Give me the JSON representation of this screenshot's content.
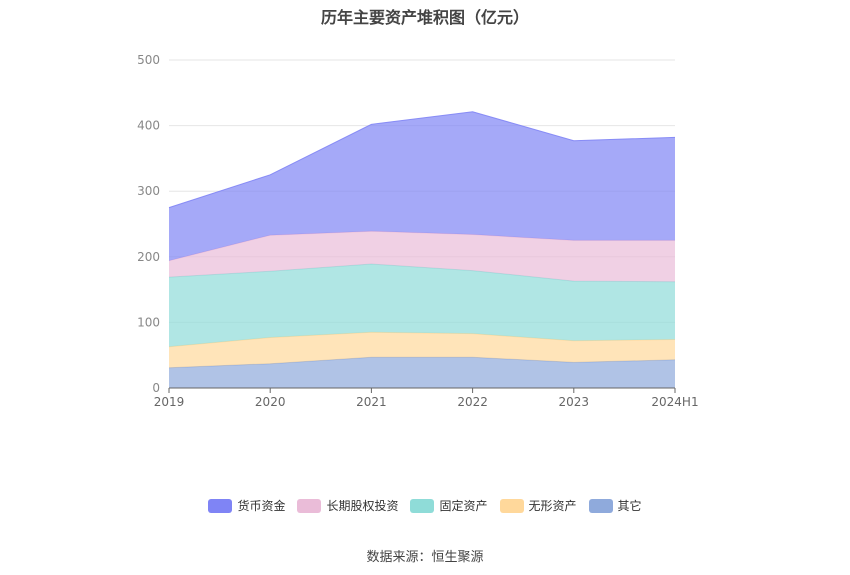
{
  "title": "历年主要资产堆积图（亿元）",
  "source": "数据来源：恒生聚源",
  "chart_data": {
    "type": "area",
    "stacked": true,
    "title": "历年主要资产堆积图（亿元）",
    "categories": [
      "2019",
      "2020",
      "2021",
      "2022",
      "2023",
      "2024H1"
    ],
    "ylim": [
      0,
      500
    ],
    "yticks": [
      0,
      100,
      200,
      300,
      400,
      500
    ],
    "grid": true,
    "legend_position": "bottom",
    "series": [
      {
        "name": "其它",
        "color": "#8faadc",
        "values": [
          31,
          37,
          47,
          47,
          39,
          43
        ]
      },
      {
        "name": "无形资产",
        "color": "#ffd89b",
        "values": [
          32,
          40,
          38,
          36,
          33,
          31
        ]
      },
      {
        "name": "固定资产",
        "color": "#8fdcd8",
        "values": [
          106,
          101,
          104,
          96,
          91,
          88
        ]
      },
      {
        "name": "长期股权投资",
        "color": "#eabcd8",
        "values": [
          25,
          55,
          50,
          55,
          62,
          63
        ]
      },
      {
        "name": "货币资金",
        "color": "#7f84f5",
        "values": [
          81,
          92,
          163,
          187,
          152,
          157
        ]
      }
    ],
    "legend_order": [
      "货币资金",
      "长期股权投资",
      "固定资产",
      "无形资产",
      "其它"
    ]
  }
}
